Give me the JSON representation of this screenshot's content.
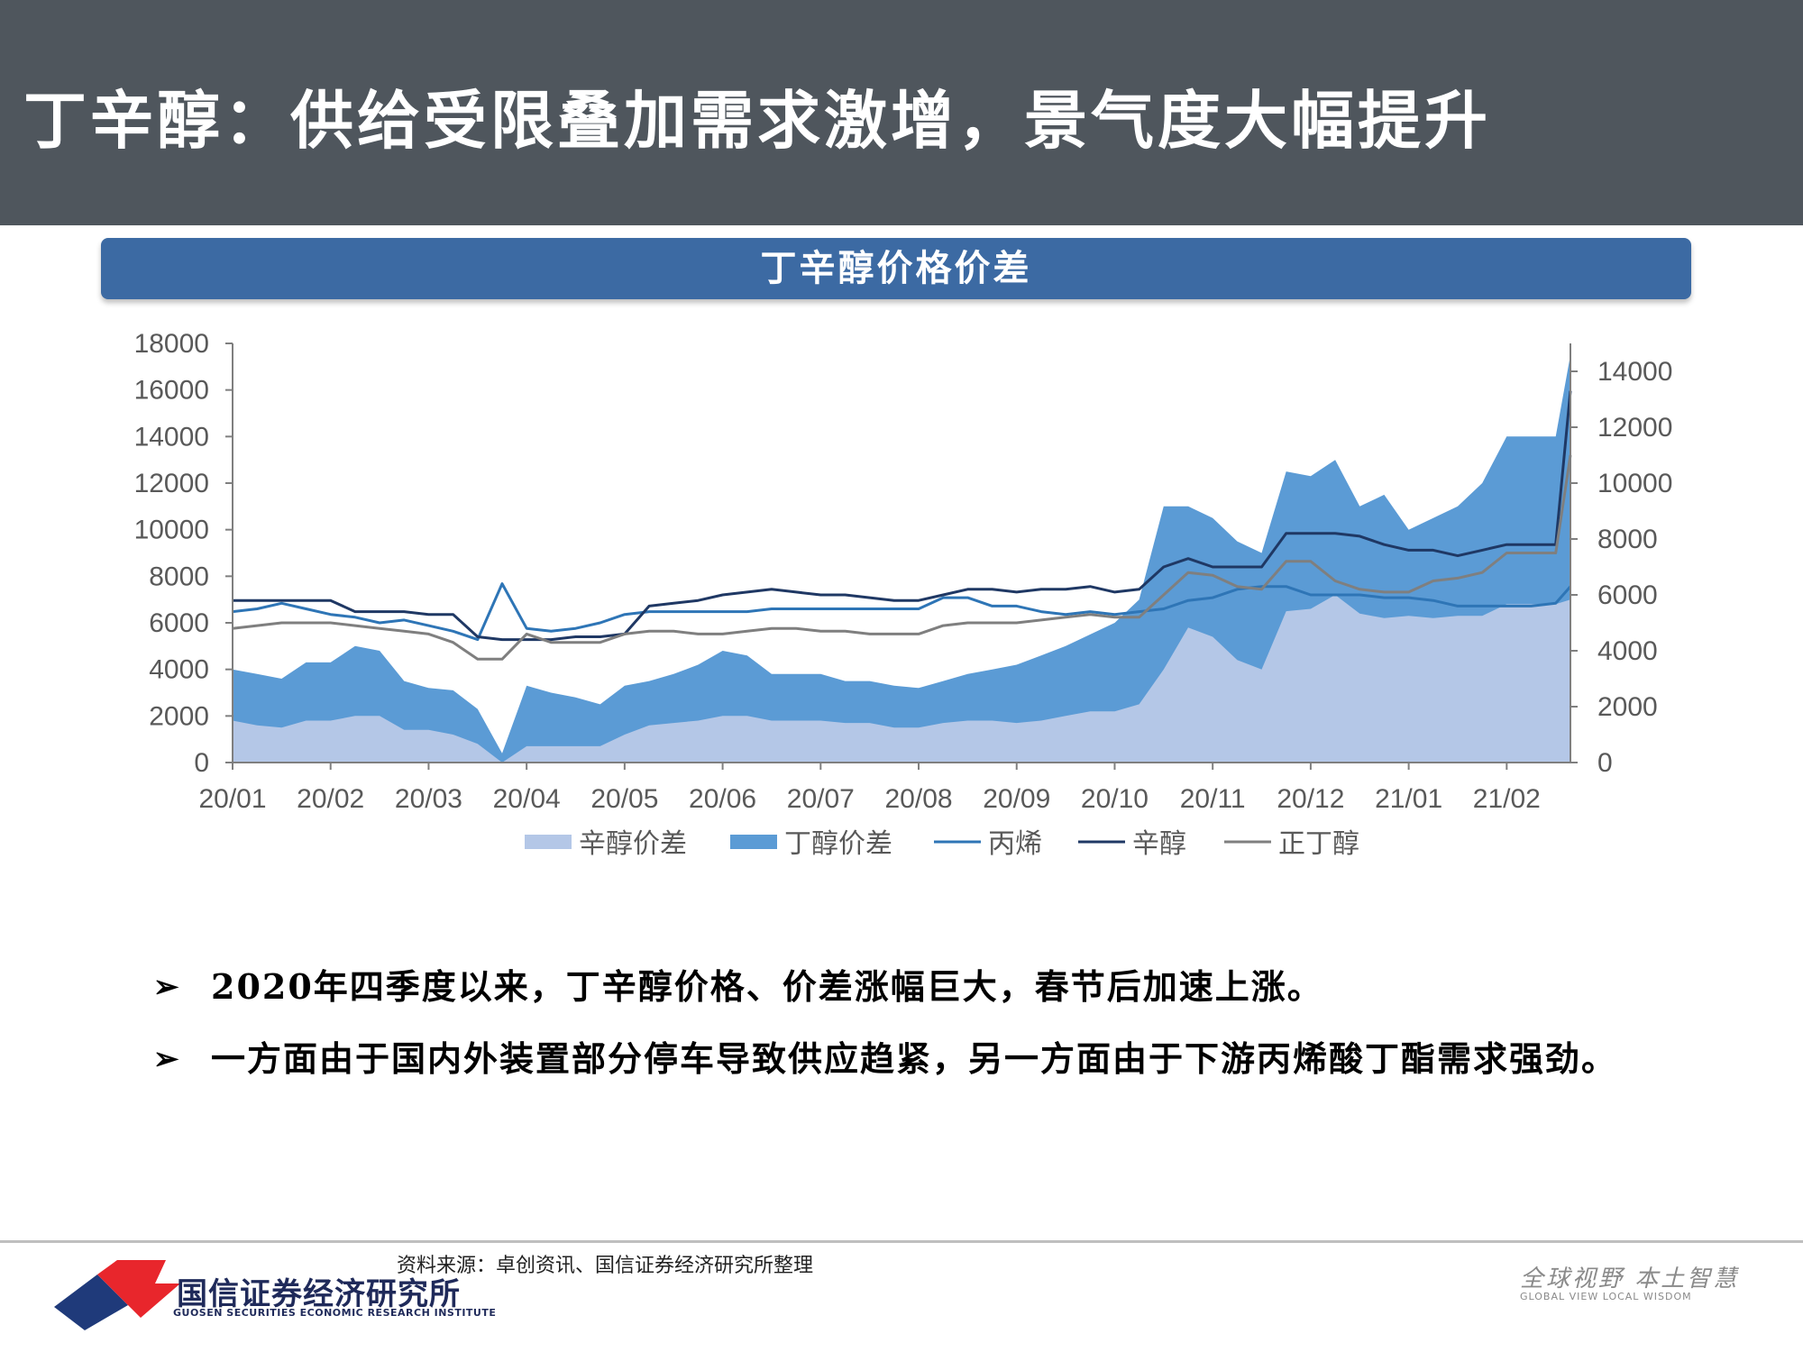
{
  "title": "丁辛醇：供给受限叠加需求激增，景气度大幅提升",
  "chart_banner": "丁辛醇价格价差",
  "chart_data": {
    "type": "area",
    "x_tick_labels": [
      "20/01",
      "20/02",
      "20/03",
      "20/04",
      "20/05",
      "20/06",
      "20/07",
      "20/08",
      "20/09",
      "20/10",
      "20/11",
      "20/12",
      "21/01",
      "21/02"
    ],
    "left_axis": {
      "ylim": [
        0,
        18000
      ],
      "ticks": [
        0,
        2000,
        4000,
        6000,
        8000,
        10000,
        12000,
        14000,
        16000,
        18000
      ]
    },
    "right_axis": {
      "ylim": [
        0,
        15000
      ],
      "ticks": [
        0,
        2000,
        4000,
        6000,
        8000,
        10000,
        12000,
        14000
      ]
    },
    "legend_position": "bottom",
    "x": [
      0,
      0.25,
      0.5,
      0.75,
      1,
      1.25,
      1.5,
      1.75,
      2,
      2.25,
      2.5,
      2.75,
      3,
      3.25,
      3.5,
      3.75,
      4,
      4.25,
      4.5,
      4.75,
      5,
      5.25,
      5.5,
      5.75,
      6,
      6.25,
      6.5,
      6.75,
      7,
      7.25,
      7.5,
      7.75,
      8,
      8.25,
      8.5,
      8.75,
      9,
      9.25,
      9.5,
      9.75,
      10,
      10.25,
      10.5,
      10.75,
      11,
      11.25,
      11.5,
      11.75,
      12,
      12.25,
      12.5,
      12.75,
      13,
      13.25,
      13.5,
      13.65
    ],
    "series": [
      {
        "name": "辛醇价差",
        "axis": "left",
        "style": "area",
        "color": "#b4c7e7",
        "values": [
          1800,
          1600,
          1500,
          1800,
          1800,
          2000,
          2000,
          1400,
          1400,
          1200,
          800,
          0,
          700,
          700,
          700,
          700,
          1200,
          1600,
          1700,
          1800,
          2000,
          2000,
          1800,
          1800,
          1800,
          1700,
          1700,
          1500,
          1500,
          1700,
          1800,
          1800,
          1700,
          1800,
          2000,
          2200,
          2200,
          2500,
          4000,
          5800,
          5400,
          4400,
          4000,
          6500,
          6600,
          7200,
          6400,
          6200,
          6300,
          6200,
          6300,
          6300,
          6800,
          6800,
          6800,
          7000
        ]
      },
      {
        "name": "丁醇价差",
        "axis": "left",
        "style": "area",
        "color": "#5b9bd5",
        "values": [
          4000,
          3800,
          3600,
          4300,
          4300,
          5000,
          4800,
          3500,
          3200,
          3100,
          2300,
          400,
          3300,
          3000,
          2800,
          2500,
          3300,
          3500,
          3800,
          4200,
          4800,
          4600,
          3800,
          3800,
          3800,
          3500,
          3500,
          3300,
          3200,
          3500,
          3800,
          4000,
          4200,
          4600,
          5000,
          5500,
          6000,
          7000,
          11000,
          11000,
          10500,
          9500,
          9000,
          12500,
          12300,
          13000,
          11000,
          11500,
          10000,
          10500,
          11000,
          12000,
          14000,
          14000,
          14000,
          17500
        ]
      },
      {
        "name": "丙烯",
        "axis": "right",
        "style": "line",
        "color": "#2e75b6",
        "values": [
          5400,
          5500,
          5700,
          5500,
          5300,
          5200,
          5000,
          5100,
          4900,
          4700,
          4400,
          6400,
          4800,
          4700,
          4800,
          5000,
          5300,
          5400,
          5400,
          5400,
          5400,
          5400,
          5500,
          5500,
          5500,
          5500,
          5500,
          5500,
          5500,
          5900,
          5900,
          5600,
          5600,
          5400,
          5300,
          5400,
          5300,
          5400,
          5500,
          5800,
          5900,
          6200,
          6300,
          6300,
          6000,
          6000,
          6000,
          5900,
          5900,
          5800,
          5600,
          5600,
          5600,
          5600,
          5700,
          6300
        ]
      },
      {
        "name": "辛醇",
        "axis": "right",
        "style": "line",
        "color": "#1f3864",
        "values": [
          5800,
          5800,
          5800,
          5800,
          5800,
          5400,
          5400,
          5400,
          5300,
          5300,
          4500,
          4400,
          4400,
          4400,
          4500,
          4500,
          4600,
          5600,
          5700,
          5800,
          6000,
          6100,
          6200,
          6100,
          6000,
          6000,
          5900,
          5800,
          5800,
          6000,
          6200,
          6200,
          6100,
          6200,
          6200,
          6300,
          6100,
          6200,
          7000,
          7300,
          7000,
          7000,
          7000,
          8200,
          8200,
          8200,
          8100,
          7800,
          7600,
          7600,
          7400,
          7600,
          7800,
          7800,
          7800,
          13300
        ]
      },
      {
        "name": "正丁醇",
        "axis": "right",
        "style": "line",
        "color": "#7f7f7f",
        "values": [
          4800,
          4900,
          5000,
          5000,
          5000,
          4900,
          4800,
          4700,
          4600,
          4300,
          3700,
          3700,
          4600,
          4300,
          4300,
          4300,
          4600,
          4700,
          4700,
          4600,
          4600,
          4700,
          4800,
          4800,
          4700,
          4700,
          4600,
          4600,
          4600,
          4900,
          5000,
          5000,
          5000,
          5100,
          5200,
          5300,
          5200,
          5200,
          6000,
          6800,
          6700,
          6300,
          6200,
          7200,
          7200,
          6500,
          6200,
          6100,
          6100,
          6500,
          6600,
          6800,
          7500,
          7500,
          7500,
          11000
        ]
      }
    ]
  },
  "bullets": [
    "2020年四季度以来，丁辛醇价格、价差涨幅巨大，春节后加速上涨。",
    "一方面由于国内外装置部分停车导致供应趋紧，另一方面由于下游丙烯酸丁酯需求强劲。"
  ],
  "bullet_mark": "➢",
  "source": "资料来源：卓创资讯、国信证券经济研究所整理",
  "company": {
    "name_cn": "国信证券经济研究所",
    "name_en": "GUOSEN SECURITIES ECONOMIC RESEARCH INSTITUTE"
  },
  "slogan": {
    "cn": "全球视野  本土智慧",
    "en": "GLOBAL VIEW   LOCAL WISDOM"
  },
  "colors": {
    "title_bar": "#4f565d",
    "banner": "#3c6aa3",
    "company": "#1f2a5a",
    "logo_red": "#e8262c"
  }
}
